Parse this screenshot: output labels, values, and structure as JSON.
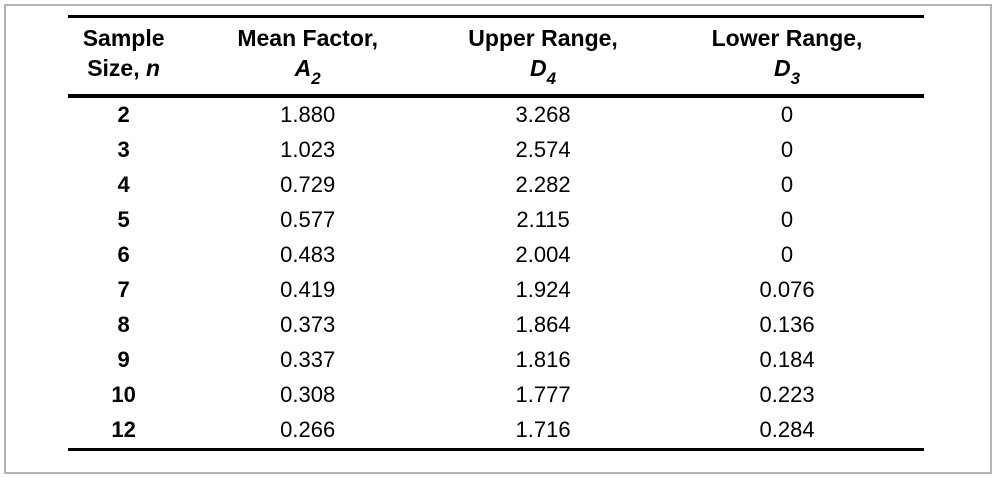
{
  "table": {
    "columns": [
      {
        "line1": "Sample",
        "line2": "Size, ",
        "symbol": "n",
        "subscript": ""
      },
      {
        "line1": "Mean Factor,",
        "symbol": "A",
        "subscript": "2"
      },
      {
        "line1": "Upper Range,",
        "symbol": "D",
        "subscript": "4"
      },
      {
        "line1": "Lower Range,",
        "symbol": "D",
        "subscript": "3"
      }
    ],
    "rows": [
      {
        "n": "2",
        "a2": "1.880",
        "d4": "3.268",
        "d3": "0"
      },
      {
        "n": "3",
        "a2": "1.023",
        "d4": "2.574",
        "d3": "0"
      },
      {
        "n": "4",
        "a2": "0.729",
        "d4": "2.282",
        "d3": "0"
      },
      {
        "n": "5",
        "a2": "0.577",
        "d4": "2.115",
        "d3": "0"
      },
      {
        "n": "6",
        "a2": "0.483",
        "d4": "2.004",
        "d3": "0"
      },
      {
        "n": "7",
        "a2": "0.419",
        "d4": "1.924",
        "d3": "0.076"
      },
      {
        "n": "8",
        "a2": "0.373",
        "d4": "1.864",
        "d3": "0.136"
      },
      {
        "n": "9",
        "a2": "0.337",
        "d4": "1.816",
        "d3": "0.184"
      },
      {
        "n": "10",
        "a2": "0.308",
        "d4": "1.777",
        "d3": "0.223"
      },
      {
        "n": "12",
        "a2": "0.266",
        "d4": "1.716",
        "d3": "0.284"
      }
    ],
    "colors": {
      "text": "#000000",
      "rule": "#000000",
      "frame_border": "#b4b4b4",
      "background": "#ffffff"
    }
  }
}
